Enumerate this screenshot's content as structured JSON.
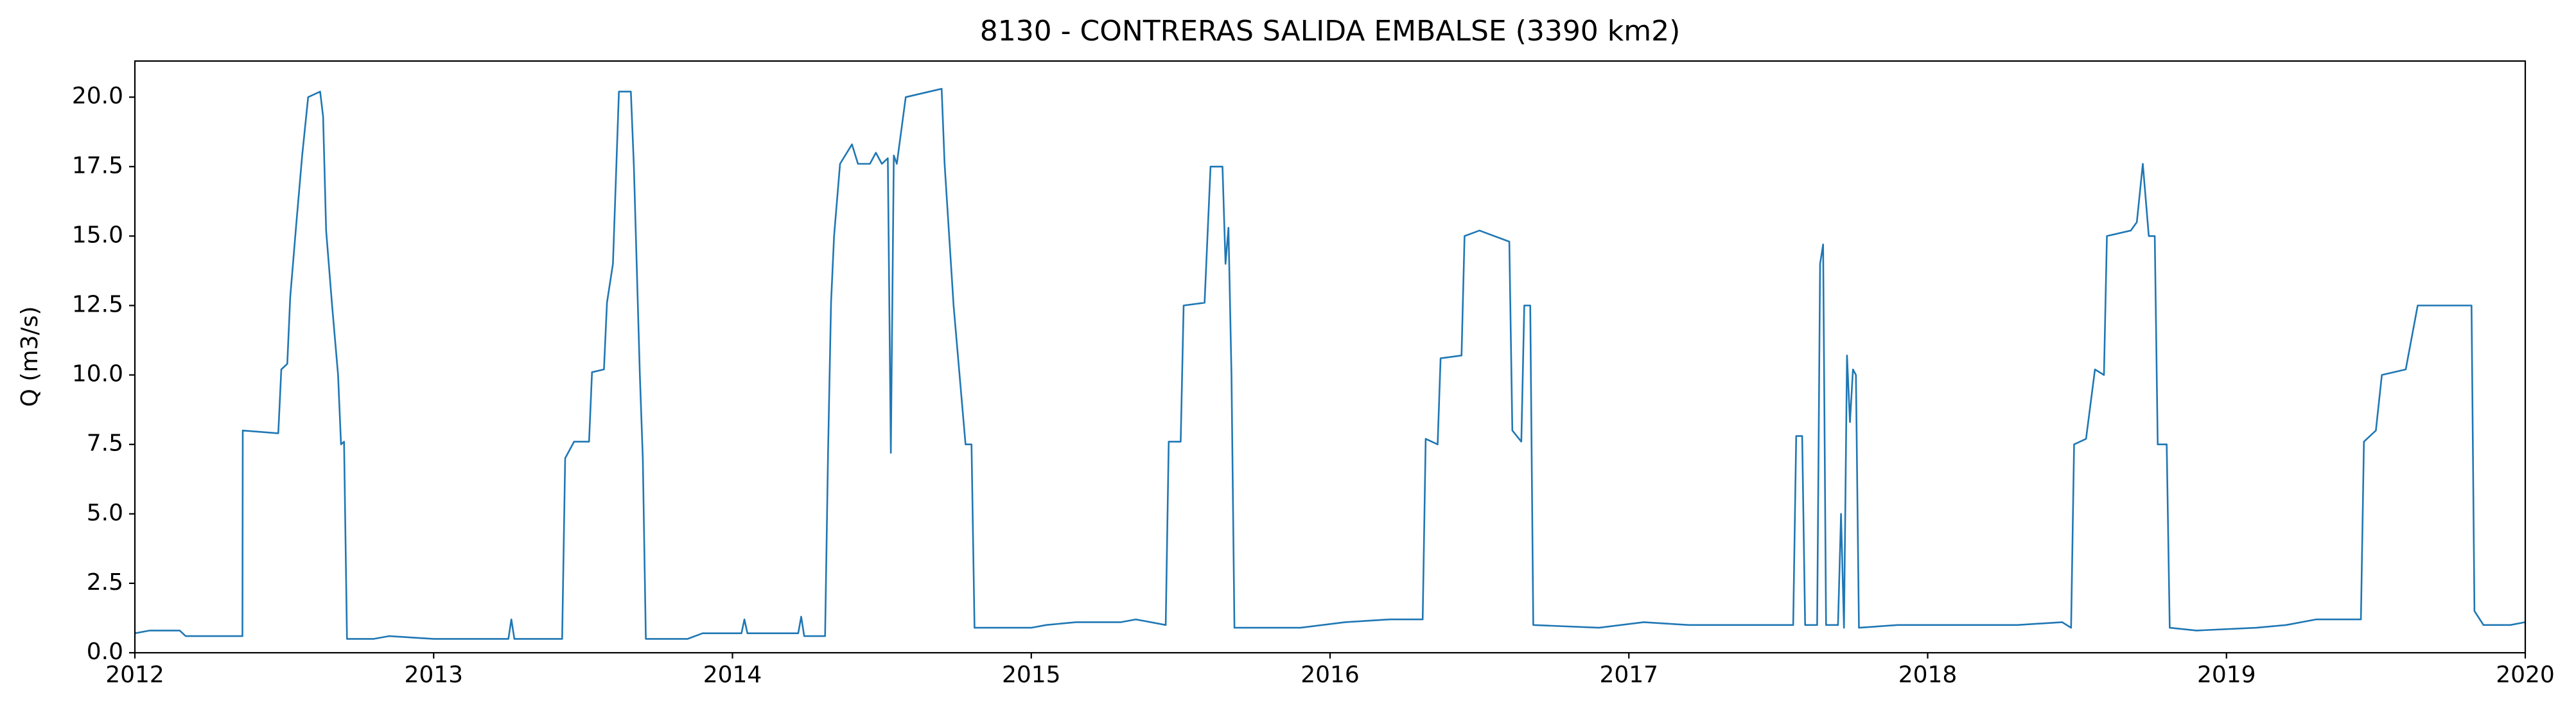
{
  "chart_data": {
    "type": "line",
    "title": "8130 - CONTRERAS SALIDA EMBALSE (3390 km2)",
    "y_label": "Q (m3/s)",
    "x": [
      2012.0,
      2012.05,
      2012.15,
      2012.17,
      2012.36,
      2012.361,
      2012.48,
      2012.49,
      2012.51,
      2012.52,
      2012.54,
      2012.56,
      2012.58,
      2012.62,
      2012.63,
      2012.64,
      2012.66,
      2012.68,
      2012.69,
      2012.7,
      2012.71,
      2012.8,
      2012.85,
      2013.0,
      2013.25,
      2013.26,
      2013.27,
      2013.43,
      2013.44,
      2013.47,
      2013.52,
      2013.53,
      2013.57,
      2013.58,
      2013.6,
      2013.62,
      2013.66,
      2013.67,
      2013.69,
      2013.7,
      2013.71,
      2013.85,
      2013.9,
      2014.03,
      2014.04,
      2014.05,
      2014.22,
      2014.23,
      2014.24,
      2014.31,
      2014.32,
      2014.33,
      2014.34,
      2014.36,
      2014.4,
      2014.42,
      2014.46,
      2014.48,
      2014.5,
      2014.52,
      2014.53,
      2014.54,
      2014.55,
      2014.58,
      2014.7,
      2014.71,
      2014.74,
      2014.76,
      2014.78,
      2014.8,
      2014.81,
      2015.0,
      2015.05,
      2015.15,
      2015.3,
      2015.35,
      2015.45,
      2015.46,
      2015.5,
      2015.51,
      2015.58,
      2015.6,
      2015.64,
      2015.65,
      2015.66,
      2015.67,
      2015.68,
      2015.9,
      2016.05,
      2016.2,
      2016.31,
      2016.32,
      2016.36,
      2016.37,
      2016.44,
      2016.45,
      2016.5,
      2016.6,
      2016.61,
      2016.64,
      2016.65,
      2016.67,
      2016.68,
      2016.9,
      2017.05,
      2017.2,
      2017.55,
      2017.56,
      2017.58,
      2017.59,
      2017.63,
      2017.64,
      2017.65,
      2017.66,
      2017.7,
      2017.71,
      2017.72,
      2017.73,
      2017.74,
      2017.75,
      2017.76,
      2017.77,
      2017.9,
      2018.3,
      2018.45,
      2018.48,
      2018.49,
      2018.53,
      2018.56,
      2018.59,
      2018.6,
      2018.68,
      2018.7,
      2018.72,
      2018.74,
      2018.76,
      2018.77,
      2018.8,
      2018.81,
      2018.9,
      2019.1,
      2019.2,
      2019.3,
      2019.45,
      2019.46,
      2019.5,
      2019.52,
      2019.6,
      2019.64,
      2019.82,
      2019.83,
      2019.86,
      2019.95,
      2020.0
    ],
    "values": [
      0.7,
      0.8,
      0.8,
      0.6,
      0.6,
      8.0,
      7.9,
      10.2,
      10.4,
      12.8,
      15.4,
      17.9,
      20.0,
      20.2,
      19.3,
      15.2,
      12.5,
      10.0,
      7.5,
      7.6,
      0.5,
      0.5,
      0.6,
      0.5,
      0.5,
      1.2,
      0.5,
      0.5,
      7.0,
      7.6,
      7.6,
      10.1,
      10.2,
      12.6,
      14.0,
      20.2,
      20.2,
      17.5,
      10.0,
      7.0,
      0.5,
      0.5,
      0.7,
      0.7,
      1.2,
      0.7,
      0.7,
      1.3,
      0.6,
      0.6,
      7.3,
      12.6,
      15.0,
      17.6,
      18.3,
      17.6,
      17.6,
      18.0,
      17.6,
      17.8,
      7.2,
      17.9,
      17.6,
      20.0,
      20.3,
      17.6,
      12.5,
      10.0,
      7.5,
      7.5,
      0.9,
      0.9,
      1.0,
      1.1,
      1.1,
      1.2,
      1.0,
      7.6,
      7.6,
      12.5,
      12.6,
      17.5,
      17.5,
      14.0,
      15.3,
      10.0,
      0.9,
      0.9,
      1.1,
      1.2,
      1.2,
      7.7,
      7.5,
      10.6,
      10.7,
      15.0,
      15.2,
      14.8,
      8.0,
      7.6,
      12.5,
      12.5,
      1.0,
      0.9,
      1.1,
      1.0,
      1.0,
      7.8,
      7.8,
      1.0,
      1.0,
      14.0,
      14.7,
      1.0,
      1.0,
      5.0,
      0.9,
      10.7,
      8.3,
      10.2,
      10.0,
      0.9,
      1.0,
      1.0,
      1.1,
      0.9,
      7.5,
      7.7,
      10.2,
      10.0,
      15.0,
      15.2,
      15.5,
      17.6,
      15.0,
      15.0,
      7.5,
      7.5,
      0.9,
      0.8,
      0.9,
      1.0,
      1.2,
      1.2,
      7.6,
      8.0,
      10.0,
      10.2,
      12.5,
      12.5,
      1.5,
      1.0,
      1.0,
      1.1
    ],
    "color": "#1f77b4",
    "xlim": [
      2012,
      2020
    ],
    "xticks": [
      2012,
      2013,
      2014,
      2015,
      2016,
      2017,
      2018,
      2019,
      2020
    ],
    "ylim": [
      0,
      21.3
    ],
    "yticks": [
      {
        "value": 0,
        "label": "0.0"
      },
      2.5,
      {
        "value": 5,
        "label": "5.0"
      },
      7.5,
      {
        "value": 10,
        "label": "10.0"
      },
      12.5,
      {
        "value": 15,
        "label": "15.0"
      },
      17.5,
      {
        "value": 20,
        "label": "20.0"
      }
    ],
    "grid": false
  }
}
